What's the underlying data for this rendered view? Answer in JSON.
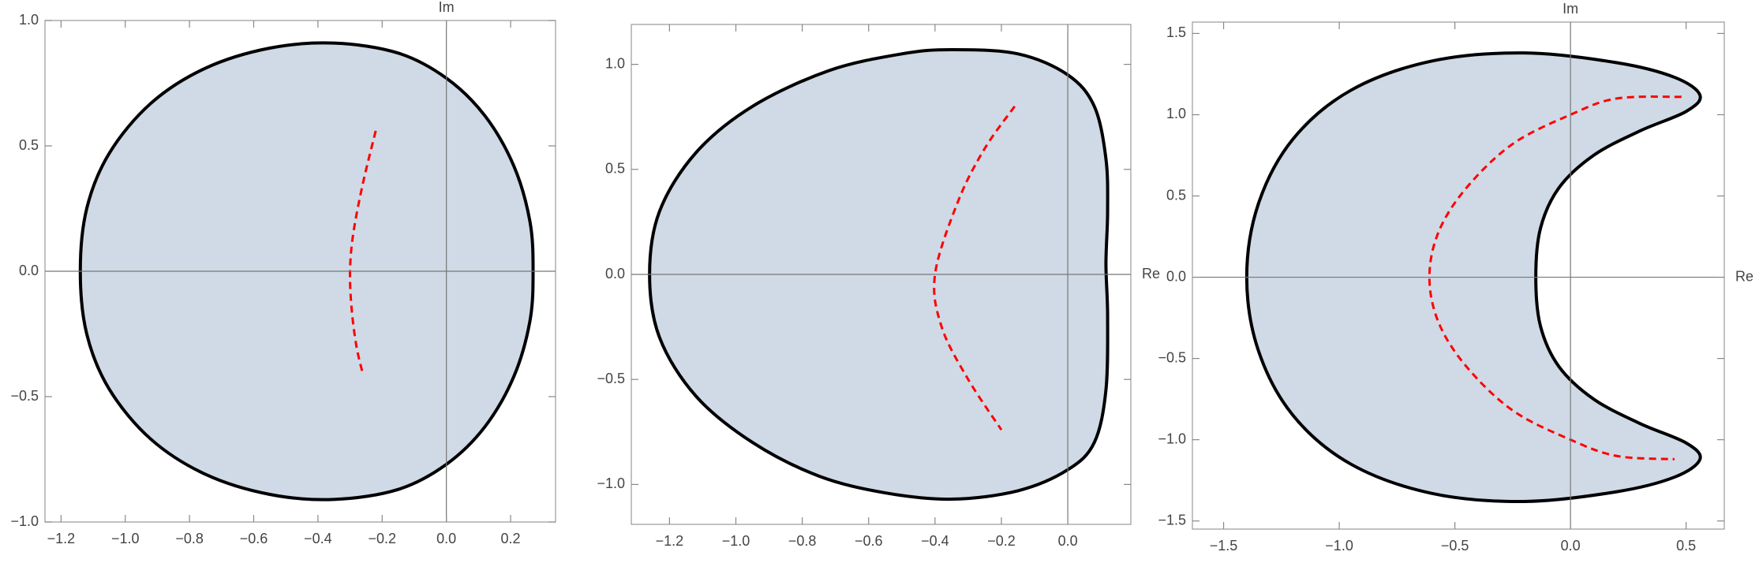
{
  "chart_data": [
    {
      "type": "region",
      "y_label": "Im",
      "xlim": [
        -1.25,
        0.34
      ],
      "ylim": [
        -1.0,
        1.0
      ],
      "xticks": [
        {
          "value": -1.2,
          "label": "−1.2"
        },
        {
          "value": -1.0,
          "label": "−1.0"
        },
        {
          "value": -0.8,
          "label": "−0.8"
        },
        {
          "value": -0.6,
          "label": "−0.6"
        },
        {
          "value": -0.4,
          "label": "−0.4"
        },
        {
          "value": -0.2,
          "label": "−0.2"
        },
        {
          "value": 0,
          "label": "0.0"
        },
        0.2
      ],
      "yticks": [
        {
          "value": -1.0,
          "label": "−1.0"
        },
        {
          "value": -0.5,
          "label": "−0.5"
        },
        {
          "value": 0,
          "label": "0.0"
        },
        0.5,
        {
          "value": 1.0,
          "label": "1.0"
        }
      ],
      "series": [
        {
          "color": "#000000",
          "fill": "#cfdae6",
          "x": [
            -1.14,
            -1.12,
            -1.05,
            -0.92,
            -0.75,
            -0.55,
            -0.35,
            -0.15,
            0.0,
            0.12,
            0.21,
            0.26,
            0.27,
            0.26,
            0.21,
            0.12,
            0.0,
            -0.15,
            -0.35,
            -0.55,
            -0.75,
            -0.92,
            -1.05,
            -1.12
          ],
          "y": [
            0,
            0.25,
            0.47,
            0.67,
            0.81,
            0.89,
            0.91,
            0.87,
            0.77,
            0.62,
            0.42,
            0.2,
            0,
            -0.2,
            -0.42,
            -0.62,
            -0.77,
            -0.87,
            -0.91,
            -0.89,
            -0.81,
            -0.67,
            -0.47,
            -0.25
          ]
        },
        {
          "color": "#ff0000",
          "dashed": true,
          "x": [
            -0.22,
            -0.26,
            -0.29,
            -0.3,
            -0.295,
            -0.28,
            -0.26
          ],
          "y": [
            0.56,
            0.35,
            0.15,
            0,
            -0.15,
            -0.3,
            -0.41
          ]
        }
      ]
    },
    {
      "type": "region",
      "x_label": "Re",
      "xlim": [
        -1.315,
        0.19
      ],
      "ylim": [
        -1.19,
        1.19
      ],
      "xticks": [
        {
          "value": -1.2,
          "label": "−1.2"
        },
        {
          "value": -1.0,
          "label": "−1.0"
        },
        {
          "value": -0.8,
          "label": "−0.8"
        },
        {
          "value": -0.6,
          "label": "−0.6"
        },
        {
          "value": -0.4,
          "label": "−0.4"
        },
        {
          "value": -0.2,
          "label": "−0.2"
        },
        {
          "value": 0,
          "label": "0.0"
        }
      ],
      "yticks": [
        {
          "value": -1.0,
          "label": "−1.0"
        },
        {
          "value": -0.5,
          "label": "−0.5"
        },
        {
          "value": 0,
          "label": "0.0"
        },
        0.5,
        {
          "value": 1.0,
          "label": "1.0"
        }
      ],
      "series": [
        {
          "color": "#000000",
          "fill": "#cfdae6",
          "x": [
            -1.26,
            -1.23,
            -1.12,
            -0.95,
            -0.72,
            -0.5,
            -0.35,
            -0.15,
            0,
            0.08,
            0.115,
            0.12,
            0.115,
            0.12,
            0.115,
            0.08,
            0,
            -0.15,
            -0.35,
            -0.55,
            -0.75,
            -0.95,
            -1.12,
            -1.23
          ],
          "y": [
            0,
            0.3,
            0.58,
            0.8,
            0.97,
            1.05,
            1.07,
            1.05,
            0.95,
            0.8,
            0.55,
            0.3,
            0.05,
            -0.2,
            -0.55,
            -0.8,
            -0.93,
            -1.03,
            -1.07,
            -1.04,
            -0.96,
            -0.8,
            -0.58,
            -0.3
          ]
        },
        {
          "color": "#ff0000",
          "dashed": true,
          "x": [
            -0.16,
            -0.25,
            -0.33,
            -0.4,
            -0.38,
            -0.3,
            -0.2
          ],
          "y": [
            0.8,
            0.6,
            0.35,
            0,
            -0.25,
            -0.5,
            -0.74
          ]
        }
      ]
    },
    {
      "type": "region",
      "x_label": "Re",
      "y_label": "Im",
      "xlim": [
        -1.635,
        0.665
      ],
      "ylim": [
        -1.55,
        1.57
      ],
      "xticks": [
        {
          "value": -1.5,
          "label": "−1.5"
        },
        {
          "value": -1.0,
          "label": "−1.0"
        },
        {
          "value": -0.5,
          "label": "−0.5"
        },
        {
          "value": 0,
          "label": "0.0"
        },
        0.5
      ],
      "yticks": [
        {
          "value": -1.5,
          "label": "−1.5"
        },
        {
          "value": -1.0,
          "label": "−1.0"
        },
        {
          "value": -0.5,
          "label": "−0.5"
        },
        {
          "value": 0,
          "label": "0.0"
        },
        0.5,
        {
          "value": 1.0,
          "label": "1.0"
        },
        1.5
      ],
      "series": [
        {
          "color": "#000000",
          "fill": "#cfdae6",
          "x": [
            -1.4,
            -1.35,
            -1.2,
            -0.95,
            -0.6,
            -0.2,
            0.2,
            0.45,
            0.56,
            0.5,
            0.3,
            0.1,
            -0.05,
            -0.13,
            -0.15,
            -0.13,
            -0.05,
            0.1,
            0.3,
            0.5,
            0.56,
            0.45,
            0.2,
            -0.2,
            -0.6,
            -0.95,
            -1.2,
            -1.35
          ],
          "y": [
            0,
            0.45,
            0.85,
            1.15,
            1.33,
            1.38,
            1.32,
            1.23,
            1.12,
            1.02,
            0.9,
            0.75,
            0.55,
            0.3,
            0,
            -0.3,
            -0.55,
            -0.75,
            -0.9,
            -1.02,
            -1.12,
            -1.23,
            -1.32,
            -1.38,
            -1.33,
            -1.15,
            -0.85,
            -0.45
          ]
        },
        {
          "color": "#ff0000",
          "dashed": true,
          "x": [
            0.48,
            0.2,
            0,
            -0.25,
            -0.45,
            -0.57,
            -0.61,
            -0.57,
            -0.45,
            -0.25,
            0,
            0.2,
            0.45
          ],
          "y": [
            1.11,
            1.1,
            1.0,
            0.82,
            0.55,
            0.28,
            0,
            -0.28,
            -0.55,
            -0.82,
            -1.0,
            -1.1,
            -1.12
          ]
        }
      ]
    }
  ]
}
